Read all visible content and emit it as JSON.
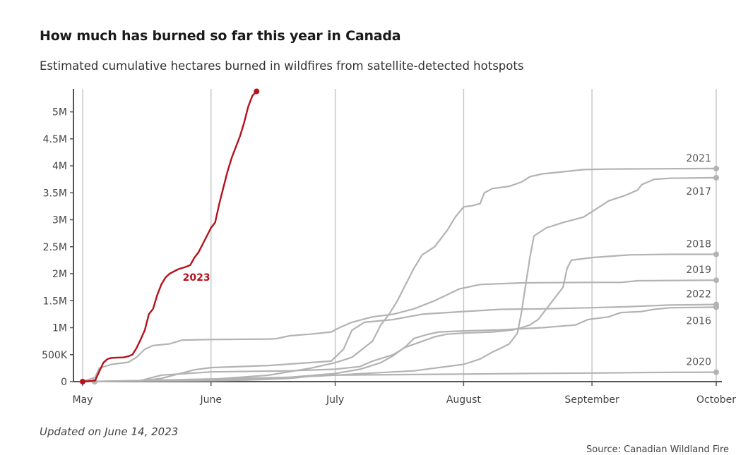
{
  "header": {
    "title": "How much has burned so far this year in Canada",
    "subtitle": "Estimated cumulative hectares burned in wildfires from satellite-detected hotspots"
  },
  "footer": {
    "updated": "Updated on June 14, 2023",
    "source": "Source: Canadian Wildland Fire"
  },
  "colors": {
    "highlight": "#b5121b",
    "other_years": "#b3b3b3",
    "grid": "#c8c8c8",
    "axis": "#555555"
  },
  "chart_data": {
    "type": "line",
    "title": "How much has burned so far this year in Canada",
    "subtitle": "Estimated cumulative hectares burned in wildfires from satellite-detected hotspots",
    "xlabel": "",
    "ylabel": "",
    "x_unit": "date (day of year, May 1 – October 1)",
    "xlim": [
      "2000-05-01",
      "2000-10-01"
    ],
    "ylim": [
      0,
      5400000
    ],
    "grid": "vertical at month starts",
    "x_ticks": [
      {
        "label": "May",
        "date": "2000-05-01"
      },
      {
        "label": "June",
        "date": "2000-06-01"
      },
      {
        "label": "July",
        "date": "2000-07-01"
      },
      {
        "label": "August",
        "date": "2000-08-01"
      },
      {
        "label": "September",
        "date": "2000-09-01"
      },
      {
        "label": "October",
        "date": "2000-10-01"
      }
    ],
    "y_ticks": [
      {
        "label": "0",
        "value": 0
      },
      {
        "label": "500K",
        "value": 500000
      },
      {
        "label": "1M",
        "value": 1000000
      },
      {
        "label": "1.5M",
        "value": 1500000
      },
      {
        "label": "2M",
        "value": 2000000
      },
      {
        "label": "2.5M",
        "value": 2500000
      },
      {
        "label": "3M",
        "value": 3000000
      },
      {
        "label": "3.5M",
        "value": 3500000
      },
      {
        "label": "4M",
        "value": 4000000
      },
      {
        "label": "4.5M",
        "value": 4500000
      },
      {
        "label": "5M",
        "value": 5000000
      }
    ],
    "series": [
      {
        "name": "2023",
        "highlight": true,
        "label_at": [
          "2000-05-29",
          2000000
        ],
        "points": [
          [
            "2000-05-01",
            0
          ],
          [
            "2000-05-04",
            20000
          ],
          [
            "2000-05-06",
            350000
          ],
          [
            "2000-05-07",
            420000
          ],
          [
            "2000-05-08",
            440000
          ],
          [
            "2000-05-11",
            450000
          ],
          [
            "2000-05-12",
            470000
          ],
          [
            "2000-05-13",
            500000
          ],
          [
            "2000-05-14",
            620000
          ],
          [
            "2000-05-15",
            780000
          ],
          [
            "2000-05-16",
            950000
          ],
          [
            "2000-05-17",
            1250000
          ],
          [
            "2000-05-18",
            1350000
          ],
          [
            "2000-05-19",
            1600000
          ],
          [
            "2000-05-20",
            1800000
          ],
          [
            "2000-05-21",
            1930000
          ],
          [
            "2000-05-22",
            2000000
          ],
          [
            "2000-05-24",
            2080000
          ],
          [
            "2000-05-26",
            2130000
          ],
          [
            "2000-05-27",
            2160000
          ],
          [
            "2000-05-28",
            2300000
          ],
          [
            "2000-05-29",
            2400000
          ],
          [
            "2000-05-30",
            2550000
          ],
          [
            "2000-05-31",
            2700000
          ],
          [
            "2000-06-01",
            2850000
          ],
          [
            "2000-06-02",
            2950000
          ],
          [
            "2000-06-03",
            3300000
          ],
          [
            "2000-06-04",
            3600000
          ],
          [
            "2000-06-05",
            3900000
          ],
          [
            "2000-06-06",
            4150000
          ],
          [
            "2000-06-08",
            4550000
          ],
          [
            "2000-06-09",
            4800000
          ],
          [
            "2000-06-10",
            5100000
          ],
          [
            "2000-06-11",
            5300000
          ],
          [
            "2000-06-12",
            5380000
          ]
        ]
      },
      {
        "name": "2021",
        "label_offset": "above",
        "points": [
          [
            "2000-05-01",
            0
          ],
          [
            "2000-05-15",
            15000
          ],
          [
            "2000-06-01",
            40000
          ],
          [
            "2000-06-15",
            120000
          ],
          [
            "2000-06-25",
            250000
          ],
          [
            "2000-07-01",
            350000
          ],
          [
            "2000-07-05",
            450000
          ],
          [
            "2000-07-10",
            750000
          ],
          [
            "2000-07-12",
            1050000
          ],
          [
            "2000-07-14",
            1250000
          ],
          [
            "2000-07-16",
            1500000
          ],
          [
            "2000-07-18",
            1800000
          ],
          [
            "2000-07-20",
            2100000
          ],
          [
            "2000-07-22",
            2350000
          ],
          [
            "2000-07-25",
            2500000
          ],
          [
            "2000-07-28",
            2800000
          ],
          [
            "2000-07-30",
            3050000
          ],
          [
            "2000-08-01",
            3240000
          ],
          [
            "2000-08-03",
            3260000
          ],
          [
            "2000-08-05",
            3300000
          ],
          [
            "2000-08-06",
            3500000
          ],
          [
            "2000-08-08",
            3580000
          ],
          [
            "2000-08-12",
            3620000
          ],
          [
            "2000-08-15",
            3700000
          ],
          [
            "2000-08-17",
            3800000
          ],
          [
            "2000-08-20",
            3850000
          ],
          [
            "2000-08-25",
            3890000
          ],
          [
            "2000-08-30",
            3930000
          ],
          [
            "2000-09-05",
            3940000
          ],
          [
            "2000-09-15",
            3945000
          ],
          [
            "2000-10-01",
            3950000
          ]
        ]
      },
      {
        "name": "2017",
        "label_offset": "below",
        "points": [
          [
            "2000-05-01",
            0
          ],
          [
            "2000-06-01",
            30000
          ],
          [
            "2000-06-20",
            80000
          ],
          [
            "2000-07-01",
            120000
          ],
          [
            "2000-07-10",
            160000
          ],
          [
            "2000-07-20",
            200000
          ],
          [
            "2000-08-01",
            320000
          ],
          [
            "2000-08-05",
            420000
          ],
          [
            "2000-08-08",
            550000
          ],
          [
            "2000-08-10",
            620000
          ],
          [
            "2000-08-12",
            700000
          ],
          [
            "2000-08-14",
            900000
          ],
          [
            "2000-08-15",
            1300000
          ],
          [
            "2000-08-16",
            1800000
          ],
          [
            "2000-08-17",
            2300000
          ],
          [
            "2000-08-18",
            2700000
          ],
          [
            "2000-08-21",
            2850000
          ],
          [
            "2000-08-25",
            2950000
          ],
          [
            "2000-08-30",
            3050000
          ],
          [
            "2000-09-02",
            3200000
          ],
          [
            "2000-09-05",
            3350000
          ],
          [
            "2000-09-09",
            3450000
          ],
          [
            "2000-09-12",
            3550000
          ],
          [
            "2000-09-13",
            3650000
          ],
          [
            "2000-09-16",
            3750000
          ],
          [
            "2000-09-20",
            3770000
          ],
          [
            "2000-10-01",
            3780000
          ]
        ]
      },
      {
        "name": "2018",
        "label_offset": "above",
        "points": [
          [
            "2000-05-01",
            0
          ],
          [
            "2000-05-15",
            20000
          ],
          [
            "2000-05-20",
            120000
          ],
          [
            "2000-06-01",
            180000
          ],
          [
            "2000-06-20",
            200000
          ],
          [
            "2000-07-01",
            230000
          ],
          [
            "2000-07-07",
            280000
          ],
          [
            "2000-07-10",
            380000
          ],
          [
            "2000-07-15",
            500000
          ],
          [
            "2000-07-18",
            640000
          ],
          [
            "2000-07-21",
            720000
          ],
          [
            "2000-07-25",
            830000
          ],
          [
            "2000-07-28",
            880000
          ],
          [
            "2000-08-01",
            900000
          ],
          [
            "2000-08-08",
            920000
          ],
          [
            "2000-08-13",
            960000
          ],
          [
            "2000-08-15",
            1000000
          ],
          [
            "2000-08-17",
            1050000
          ],
          [
            "2000-08-19",
            1150000
          ],
          [
            "2000-08-21",
            1350000
          ],
          [
            "2000-08-23",
            1550000
          ],
          [
            "2000-08-25",
            1750000
          ],
          [
            "2000-08-26",
            2100000
          ],
          [
            "2000-08-27",
            2250000
          ],
          [
            "2000-09-01",
            2300000
          ],
          [
            "2000-09-10",
            2350000
          ],
          [
            "2000-09-20",
            2360000
          ],
          [
            "2000-10-01",
            2360000
          ]
        ]
      },
      {
        "name": "2019",
        "label_offset": "above",
        "points": [
          [
            "2000-05-01",
            0
          ],
          [
            "2000-05-04",
            80000
          ],
          [
            "2000-05-05",
            250000
          ],
          [
            "2000-05-08",
            320000
          ],
          [
            "2000-05-12",
            360000
          ],
          [
            "2000-05-14",
            450000
          ],
          [
            "2000-05-16",
            600000
          ],
          [
            "2000-05-18",
            670000
          ],
          [
            "2000-05-22",
            700000
          ],
          [
            "2000-05-25",
            770000
          ],
          [
            "2000-06-01",
            780000
          ],
          [
            "2000-06-15",
            790000
          ],
          [
            "2000-06-17",
            800000
          ],
          [
            "2000-06-20",
            850000
          ],
          [
            "2000-06-25",
            880000
          ],
          [
            "2000-06-30",
            920000
          ],
          [
            "2000-07-02",
            1000000
          ],
          [
            "2000-07-05",
            1100000
          ],
          [
            "2000-07-10",
            1200000
          ],
          [
            "2000-07-15",
            1250000
          ],
          [
            "2000-07-20",
            1350000
          ],
          [
            "2000-07-25",
            1500000
          ],
          [
            "2000-07-31",
            1720000
          ],
          [
            "2000-08-05",
            1800000
          ],
          [
            "2000-08-15",
            1830000
          ],
          [
            "2000-09-01",
            1840000
          ],
          [
            "2000-09-08",
            1840000
          ],
          [
            "2000-09-12",
            1870000
          ],
          [
            "2000-10-01",
            1880000
          ]
        ]
      },
      {
        "name": "2022",
        "label_offset": "above",
        "points": [
          [
            "2000-05-01",
            0
          ],
          [
            "2000-05-15",
            10000
          ],
          [
            "2000-05-20",
            60000
          ],
          [
            "2000-05-25",
            160000
          ],
          [
            "2000-05-28",
            220000
          ],
          [
            "2000-06-01",
            260000
          ],
          [
            "2000-06-15",
            300000
          ],
          [
            "2000-06-30",
            380000
          ],
          [
            "2000-07-03",
            600000
          ],
          [
            "2000-07-05",
            950000
          ],
          [
            "2000-07-08",
            1100000
          ],
          [
            "2000-07-15",
            1150000
          ],
          [
            "2000-07-22",
            1250000
          ],
          [
            "2000-07-28",
            1280000
          ],
          [
            "2000-08-01",
            1300000
          ],
          [
            "2000-08-10",
            1340000
          ],
          [
            "2000-08-20",
            1350000
          ],
          [
            "2000-09-01",
            1370000
          ],
          [
            "2000-09-10",
            1390000
          ],
          [
            "2000-09-20",
            1420000
          ],
          [
            "2000-10-01",
            1430000
          ]
        ]
      },
      {
        "name": "2016",
        "label_offset": "below",
        "points": [
          [
            "2000-05-01",
            0
          ],
          [
            "2000-05-15",
            20000
          ],
          [
            "2000-06-01",
            50000
          ],
          [
            "2000-06-20",
            80000
          ],
          [
            "2000-07-01",
            150000
          ],
          [
            "2000-07-07",
            230000
          ],
          [
            "2000-07-12",
            350000
          ],
          [
            "2000-07-15",
            480000
          ],
          [
            "2000-07-18",
            650000
          ],
          [
            "2000-07-20",
            800000
          ],
          [
            "2000-07-23",
            870000
          ],
          [
            "2000-07-26",
            920000
          ],
          [
            "2000-08-01",
            940000
          ],
          [
            "2000-08-10",
            960000
          ],
          [
            "2000-08-20",
            1000000
          ],
          [
            "2000-08-28",
            1050000
          ],
          [
            "2000-08-31",
            1150000
          ],
          [
            "2000-09-05",
            1200000
          ],
          [
            "2000-09-08",
            1280000
          ],
          [
            "2000-09-13",
            1300000
          ],
          [
            "2000-09-16",
            1340000
          ],
          [
            "2000-09-20",
            1370000
          ],
          [
            "2000-10-01",
            1380000
          ]
        ]
      },
      {
        "name": "2020",
        "label_offset": "above",
        "points": [
          [
            "2000-05-01",
            0
          ],
          [
            "2000-06-01",
            20000
          ],
          [
            "2000-06-10",
            30000
          ],
          [
            "2000-06-20",
            60000
          ],
          [
            "2000-06-25",
            100000
          ],
          [
            "2000-07-01",
            120000
          ],
          [
            "2000-07-15",
            130000
          ],
          [
            "2000-08-01",
            140000
          ],
          [
            "2000-08-15",
            150000
          ],
          [
            "2000-09-01",
            160000
          ],
          [
            "2000-09-15",
            170000
          ],
          [
            "2000-10-01",
            175000
          ]
        ]
      }
    ]
  }
}
